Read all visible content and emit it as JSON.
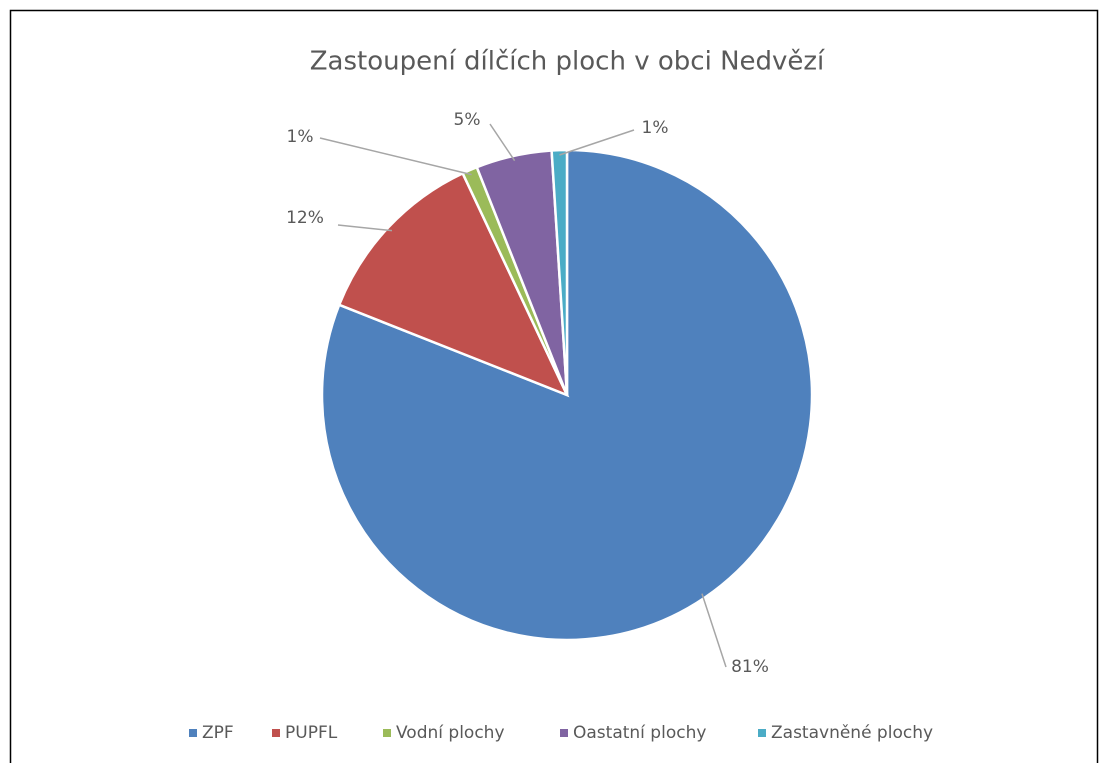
{
  "chart_data": {
    "type": "pie",
    "title": "Zastoupení dílčích ploch v obci Nedvězí",
    "categories": [
      "ZPF",
      "PUPFL",
      "Vodní plochy",
      "Oastatní plochy",
      "Zastavněné plochy"
    ],
    "values": [
      81,
      12,
      1,
      5,
      1
    ],
    "value_labels": [
      "81%",
      "12%",
      "1%",
      "5%",
      "1%"
    ],
    "colors": [
      "#4f81bd",
      "#c0504d",
      "#9bbb59",
      "#8064a2",
      "#4bacc6"
    ],
    "legend": "bottom"
  }
}
